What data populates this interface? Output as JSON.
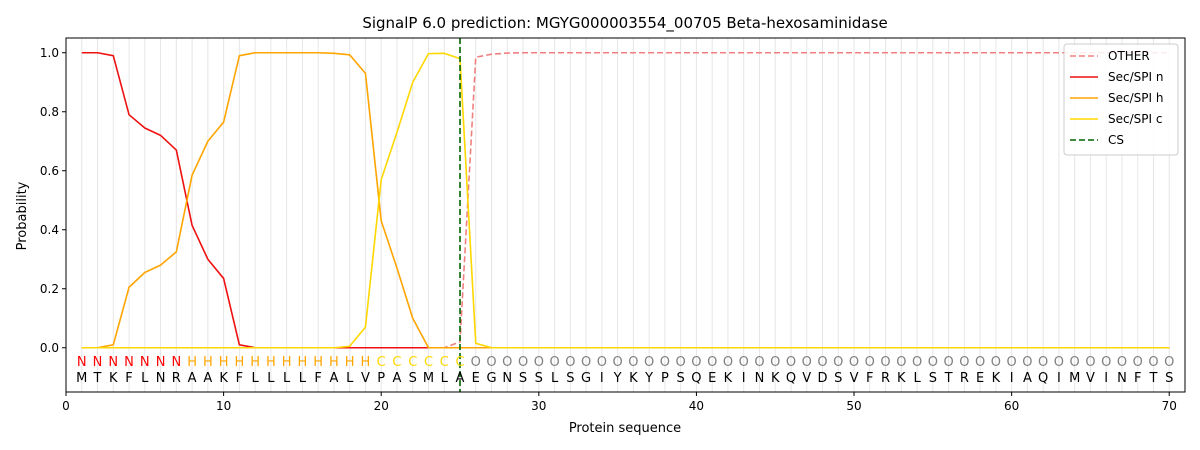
{
  "chart_data": {
    "type": "line",
    "title": "SignalP 6.0 prediction: MGYG000003554_00705 Beta-hexosaminidase",
    "xlabel": "Protein sequence",
    "ylabel": "Probability",
    "xlim": [
      0,
      71
    ],
    "ylim": [
      -0.15,
      1.05
    ],
    "xticks": [
      0,
      10,
      20,
      30,
      40,
      50,
      60,
      70
    ],
    "yticks": [
      0.0,
      0.2,
      0.4,
      0.6,
      0.8,
      1.0
    ],
    "ytick_labels": [
      "0.0",
      "0.2",
      "0.4",
      "0.6",
      "0.8",
      "1.0"
    ],
    "grid": "vertical lines at every residue",
    "legend_position": "top-right",
    "sequence": [
      "M",
      "T",
      "K",
      "F",
      "L",
      "N",
      "R",
      "A",
      "A",
      "K",
      "F",
      "L",
      "L",
      "L",
      "L",
      "F",
      "A",
      "L",
      "V",
      "P",
      "A",
      "S",
      "M",
      "L",
      "A",
      "E",
      "G",
      "N",
      "S",
      "S",
      "L",
      "S",
      "G",
      "I",
      "Y",
      "K",
      "Y",
      "P",
      "S",
      "Q",
      "E",
      "K",
      "I",
      "N",
      "K",
      "Q",
      "V",
      "D",
      "S",
      "V",
      "F",
      "R",
      "K",
      "L",
      "S",
      "T",
      "R",
      "E",
      "K",
      "I",
      "A",
      "Q",
      "I",
      "M",
      "V",
      "I",
      "N",
      "F",
      "T",
      "S"
    ],
    "labels": [
      "N",
      "N",
      "N",
      "N",
      "N",
      "N",
      "N",
      "H",
      "H",
      "H",
      "H",
      "H",
      "H",
      "H",
      "H",
      "H",
      "H",
      "H",
      "H",
      "C",
      "C",
      "C",
      "C",
      "C",
      "C",
      "O",
      "O",
      "O",
      "O",
      "O",
      "O",
      "O",
      "O",
      "O",
      "O",
      "O",
      "O",
      "O",
      "O",
      "O",
      "O",
      "O",
      "O",
      "O",
      "O",
      "O",
      "O",
      "O",
      "O",
      "O",
      "O",
      "O",
      "O",
      "O",
      "O",
      "O",
      "O",
      "O",
      "O",
      "O",
      "O",
      "O",
      "O",
      "O",
      "O",
      "O",
      "O",
      "O",
      "O",
      "O"
    ],
    "label_colors": {
      "N": "#ff0000",
      "H": "#ffa500",
      "C": "#ffd700",
      "O": "#808080"
    },
    "cleavage_site": 25,
    "series": [
      {
        "name": "OTHER",
        "color": "#f08080",
        "dash": "dashed",
        "values": [
          0.0,
          0.0,
          0.0,
          0.0,
          0.0,
          0.0,
          0.0,
          0.0,
          0.0,
          0.0,
          0.0,
          0.0,
          0.0,
          0.0,
          0.0,
          0.0,
          0.0,
          0.0,
          0.0,
          0.0,
          0.0,
          0.0,
          0.0,
          0.0,
          0.02,
          0.985,
          0.995,
          0.999,
          1.0,
          1.0,
          1.0,
          1.0,
          1.0,
          1.0,
          1.0,
          1.0,
          1.0,
          1.0,
          1.0,
          1.0,
          1.0,
          1.0,
          1.0,
          1.0,
          1.0,
          1.0,
          1.0,
          1.0,
          1.0,
          1.0,
          1.0,
          1.0,
          1.0,
          1.0,
          1.0,
          1.0,
          1.0,
          1.0,
          1.0,
          1.0,
          1.0,
          1.0,
          1.0,
          1.0,
          1.0,
          1.0,
          1.0,
          1.0,
          1.0,
          1.0
        ]
      },
      {
        "name": "Sec/SPI n",
        "color": "#ee1111",
        "dash": "solid",
        "values": [
          1.0,
          1.0,
          0.99,
          0.79,
          0.745,
          0.72,
          0.67,
          0.415,
          0.3,
          0.235,
          0.01,
          0.0,
          0.0,
          0.0,
          0.0,
          0.0,
          0.0,
          0.0,
          0.0,
          0.0,
          0.0,
          0.0,
          0.0,
          0.0,
          0.0,
          0.0,
          0.0,
          0.0,
          0.0,
          0.0,
          0.0,
          0.0,
          0.0,
          0.0,
          0.0,
          0.0,
          0.0,
          0.0,
          0.0,
          0.0,
          0.0,
          0.0,
          0.0,
          0.0,
          0.0,
          0.0,
          0.0,
          0.0,
          0.0,
          0.0,
          0.0,
          0.0,
          0.0,
          0.0,
          0.0,
          0.0,
          0.0,
          0.0,
          0.0,
          0.0,
          0.0,
          0.0,
          0.0,
          0.0,
          0.0,
          0.0,
          0.0,
          0.0,
          0.0,
          0.0
        ]
      },
      {
        "name": "Sec/SPI h",
        "color": "#ffa500",
        "dash": "solid",
        "values": [
          0.0,
          0.0,
          0.01,
          0.205,
          0.255,
          0.28,
          0.325,
          0.585,
          0.7,
          0.765,
          0.99,
          1.0,
          1.0,
          1.0,
          1.0,
          1.0,
          0.998,
          0.993,
          0.93,
          0.43,
          0.27,
          0.1,
          0.0,
          0.0,
          0.0,
          0.0,
          0.0,
          0.0,
          0.0,
          0.0,
          0.0,
          0.0,
          0.0,
          0.0,
          0.0,
          0.0,
          0.0,
          0.0,
          0.0,
          0.0,
          0.0,
          0.0,
          0.0,
          0.0,
          0.0,
          0.0,
          0.0,
          0.0,
          0.0,
          0.0,
          0.0,
          0.0,
          0.0,
          0.0,
          0.0,
          0.0,
          0.0,
          0.0,
          0.0,
          0.0,
          0.0,
          0.0,
          0.0,
          0.0,
          0.0,
          0.0,
          0.0,
          0.0,
          0.0,
          0.0
        ]
      },
      {
        "name": "Sec/SPI c",
        "color": "#ffd700",
        "dash": "solid",
        "values": [
          0.0,
          0.0,
          0.0,
          0.0,
          0.0,
          0.0,
          0.0,
          0.0,
          0.0,
          0.0,
          0.0,
          0.0,
          0.0,
          0.0,
          0.0,
          0.0,
          0.0,
          0.005,
          0.07,
          0.57,
          0.73,
          0.9,
          0.997,
          0.998,
          0.98,
          0.015,
          0.0,
          0.0,
          0.0,
          0.0,
          0.0,
          0.0,
          0.0,
          0.0,
          0.0,
          0.0,
          0.0,
          0.0,
          0.0,
          0.0,
          0.0,
          0.0,
          0.0,
          0.0,
          0.0,
          0.0,
          0.0,
          0.0,
          0.0,
          0.0,
          0.0,
          0.0,
          0.0,
          0.0,
          0.0,
          0.0,
          0.0,
          0.0,
          0.0,
          0.0,
          0.0,
          0.0,
          0.0,
          0.0,
          0.0,
          0.0,
          0.0,
          0.0,
          0.0,
          0.0
        ]
      }
    ],
    "legend": [
      {
        "name": "OTHER",
        "color": "#f08080",
        "dash": "dashed"
      },
      {
        "name": "Sec/SPI n",
        "color": "#ee1111",
        "dash": "solid"
      },
      {
        "name": "Sec/SPI h",
        "color": "#ffa500",
        "dash": "solid"
      },
      {
        "name": "Sec/SPI c",
        "color": "#ffd700",
        "dash": "solid"
      },
      {
        "name": "CS",
        "color": "#006400",
        "dash": "dashed"
      }
    ]
  }
}
